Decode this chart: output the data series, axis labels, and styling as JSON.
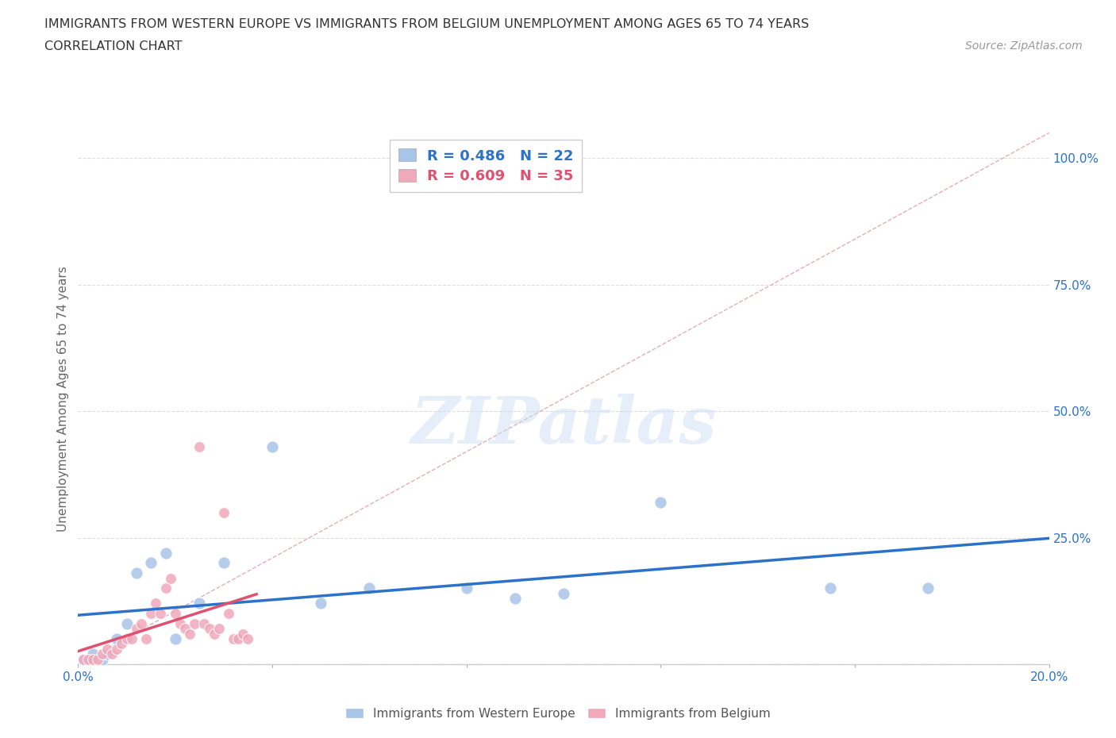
{
  "title_line1": "IMMIGRANTS FROM WESTERN EUROPE VS IMMIGRANTS FROM BELGIUM UNEMPLOYMENT AMONG AGES 65 TO 74 YEARS",
  "title_line2": "CORRELATION CHART",
  "source_text": "Source: ZipAtlas.com",
  "ylabel": "Unemployment Among Ages 65 to 74 years",
  "xlim": [
    0.0,
    0.2
  ],
  "ylim": [
    0.0,
    1.05
  ],
  "yticks": [
    0.0,
    0.25,
    0.5,
    0.75,
    1.0
  ],
  "ytick_labels": [
    "",
    "25.0%",
    "50.0%",
    "75.0%",
    "100.0%"
  ],
  "xticks": [
    0.0,
    0.04,
    0.08,
    0.12,
    0.16,
    0.2
  ],
  "xtick_labels": [
    "0.0%",
    "",
    "",
    "",
    "",
    "20.0%"
  ],
  "blue_color": "#a8c4e8",
  "pink_color": "#f0a8bb",
  "blue_line_color": "#2b72c8",
  "pink_line_color": "#e05070",
  "blue_r": 0.486,
  "blue_n": 22,
  "pink_r": 0.609,
  "pink_n": 35,
  "watermark": "ZIPatlas",
  "blue_scatter_x": [
    0.001,
    0.002,
    0.003,
    0.005,
    0.006,
    0.008,
    0.01,
    0.012,
    0.015,
    0.018,
    0.02,
    0.025,
    0.03,
    0.04,
    0.05,
    0.06,
    0.08,
    0.09,
    0.1,
    0.12,
    0.155,
    0.175
  ],
  "blue_scatter_y": [
    0.01,
    0.01,
    0.02,
    0.01,
    0.02,
    0.05,
    0.08,
    0.18,
    0.2,
    0.22,
    0.05,
    0.12,
    0.2,
    0.43,
    0.12,
    0.15,
    0.15,
    0.13,
    0.14,
    0.32,
    0.15,
    0.15
  ],
  "pink_scatter_x": [
    0.001,
    0.002,
    0.003,
    0.004,
    0.005,
    0.006,
    0.007,
    0.008,
    0.009,
    0.01,
    0.011,
    0.012,
    0.013,
    0.014,
    0.015,
    0.016,
    0.017,
    0.018,
    0.019,
    0.02,
    0.021,
    0.022,
    0.023,
    0.024,
    0.025,
    0.026,
    0.027,
    0.028,
    0.029,
    0.03,
    0.031,
    0.032,
    0.033,
    0.034,
    0.035
  ],
  "pink_scatter_y": [
    0.01,
    0.01,
    0.01,
    0.01,
    0.02,
    0.03,
    0.02,
    0.03,
    0.04,
    0.05,
    0.05,
    0.07,
    0.08,
    0.05,
    0.1,
    0.12,
    0.1,
    0.15,
    0.17,
    0.1,
    0.08,
    0.07,
    0.06,
    0.08,
    0.43,
    0.08,
    0.07,
    0.06,
    0.07,
    0.3,
    0.1,
    0.05,
    0.05,
    0.06,
    0.05
  ]
}
